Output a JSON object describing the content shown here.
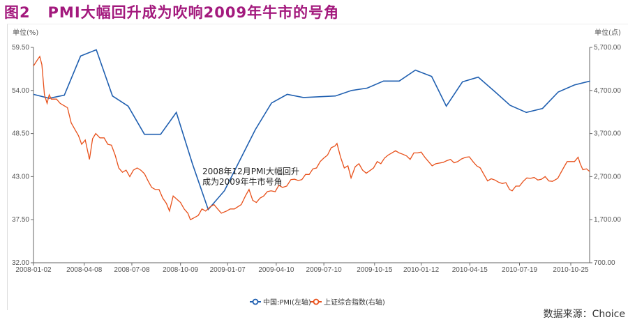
{
  "title": "图2   PMI大幅回升成为吹响2009年牛市的号角",
  "source": "数据来源：Choice",
  "chart_data": {
    "type": "line",
    "title": "图2   PMI大幅回升成为吹响2009年牛市的号角",
    "left_axis": {
      "unit": "单位(%)",
      "ylim": [
        32.0,
        59.5
      ],
      "ticks": [
        "59.50",
        "54.00",
        "48.50",
        "43.00",
        "37.50",
        "32.00"
      ]
    },
    "right_axis": {
      "unit": "单位(点)",
      "ylim": [
        700,
        5700
      ],
      "ticks": [
        "5,700.00",
        "4,700.00",
        "3,700.00",
        "2,700.00",
        "1,700.00",
        "700.00"
      ]
    },
    "x_ticks": [
      "2008-01-02",
      "2008-04-08",
      "2008-07-08",
      "2008-10-09",
      "2009-01-07",
      "2009-04-10",
      "2009-07-10",
      "2009-10-15",
      "2010-01-12",
      "2010-04-15",
      "2010-07-19",
      "2010-10-25"
    ],
    "xlim": [
      "2008-01-02",
      "2010-11-30"
    ],
    "grid": false,
    "legend_position": "bottom",
    "colors": {
      "pmi": "#1f5fb0",
      "sse": "#e8501a"
    },
    "annotation": [
      "2008年12月PMI大幅回升",
      "成为2009年牛市号角"
    ],
    "series": [
      {
        "name": "中国:PMI(左轴)",
        "axis": "left",
        "points": [
          [
            "2008-01-02",
            53.5
          ],
          [
            "2008-02-01",
            53.0
          ],
          [
            "2008-03-01",
            53.4
          ],
          [
            "2008-04-01",
            58.4
          ],
          [
            "2008-05-01",
            59.2
          ],
          [
            "2008-06-01",
            53.3
          ],
          [
            "2008-07-01",
            52.0
          ],
          [
            "2008-08-01",
            48.4
          ],
          [
            "2008-09-01",
            48.4
          ],
          [
            "2008-10-01",
            51.2
          ],
          [
            "2008-11-01",
            44.6
          ],
          [
            "2008-12-01",
            38.8
          ],
          [
            "2009-01-01",
            41.2
          ],
          [
            "2009-02-01",
            45.3
          ],
          [
            "2009-03-01",
            49.0
          ],
          [
            "2009-04-01",
            52.4
          ],
          [
            "2009-05-01",
            53.5
          ],
          [
            "2009-06-01",
            53.1
          ],
          [
            "2009-07-01",
            53.2
          ],
          [
            "2009-08-01",
            53.3
          ],
          [
            "2009-09-01",
            54.0
          ],
          [
            "2009-10-01",
            54.3
          ],
          [
            "2009-11-01",
            55.2
          ],
          [
            "2009-12-01",
            55.2
          ],
          [
            "2010-01-01",
            56.6
          ],
          [
            "2010-02-01",
            55.8
          ],
          [
            "2010-03-01",
            52.0
          ],
          [
            "2010-04-01",
            55.1
          ],
          [
            "2010-05-01",
            55.7
          ],
          [
            "2010-06-01",
            53.9
          ],
          [
            "2010-07-01",
            52.1
          ],
          [
            "2010-08-01",
            51.2
          ],
          [
            "2010-09-01",
            51.7
          ],
          [
            "2010-10-01",
            53.8
          ],
          [
            "2010-11-01",
            54.7
          ],
          [
            "2010-12-01",
            55.2
          ]
        ]
      },
      {
        "name": "上证综合指数(右轴)",
        "axis": "right",
        "points": [
          [
            "2008-01-02",
            5270
          ],
          [
            "2008-01-09",
            5400
          ],
          [
            "2008-01-14",
            5490
          ],
          [
            "2008-01-18",
            5300
          ],
          [
            "2008-01-23",
            4600
          ],
          [
            "2008-01-28",
            4400
          ],
          [
            "2008-02-01",
            4600
          ],
          [
            "2008-02-05",
            4500
          ],
          [
            "2008-02-15",
            4500
          ],
          [
            "2008-02-22",
            4400
          ],
          [
            "2008-02-29",
            4350
          ],
          [
            "2008-03-07",
            4300
          ],
          [
            "2008-03-14",
            3950
          ],
          [
            "2008-03-21",
            3800
          ],
          [
            "2008-03-28",
            3650
          ],
          [
            "2008-04-03",
            3450
          ],
          [
            "2008-04-10",
            3550
          ],
          [
            "2008-04-18",
            3100
          ],
          [
            "2008-04-24",
            3580
          ],
          [
            "2008-04-30",
            3700
          ],
          [
            "2008-05-08",
            3600
          ],
          [
            "2008-05-16",
            3600
          ],
          [
            "2008-05-23",
            3450
          ],
          [
            "2008-05-30",
            3430
          ],
          [
            "2008-06-06",
            3200
          ],
          [
            "2008-06-13",
            2900
          ],
          [
            "2008-06-20",
            2800
          ],
          [
            "2008-06-27",
            2850
          ],
          [
            "2008-07-04",
            2700
          ],
          [
            "2008-07-11",
            2850
          ],
          [
            "2008-07-18",
            2900
          ],
          [
            "2008-07-25",
            2850
          ],
          [
            "2008-08-01",
            2770
          ],
          [
            "2008-08-08",
            2600
          ],
          [
            "2008-08-15",
            2450
          ],
          [
            "2008-08-22",
            2400
          ],
          [
            "2008-08-29",
            2400
          ],
          [
            "2008-09-05",
            2200
          ],
          [
            "2008-09-12",
            2080
          ],
          [
            "2008-09-18",
            1900
          ],
          [
            "2008-09-25",
            2250
          ],
          [
            "2008-10-09",
            2100
          ],
          [
            "2008-10-16",
            1950
          ],
          [
            "2008-10-23",
            1850
          ],
          [
            "2008-10-28",
            1700
          ],
          [
            "2008-11-05",
            1750
          ],
          [
            "2008-11-12",
            1800
          ],
          [
            "2008-11-19",
            1950
          ],
          [
            "2008-11-26",
            1900
          ],
          [
            "2008-12-05",
            2000
          ],
          [
            "2008-12-12",
            2050
          ],
          [
            "2008-12-19",
            1950
          ],
          [
            "2008-12-26",
            1850
          ],
          [
            "2009-01-05",
            1900
          ],
          [
            "2009-01-12",
            1950
          ],
          [
            "2009-01-20",
            1950
          ],
          [
            "2009-02-02",
            2050
          ],
          [
            "2009-02-10",
            2250
          ],
          [
            "2009-02-17",
            2400
          ],
          [
            "2009-02-24",
            2150
          ],
          [
            "2009-03-03",
            2100
          ],
          [
            "2009-03-10",
            2200
          ],
          [
            "2009-03-17",
            2250
          ],
          [
            "2009-03-24",
            2350
          ],
          [
            "2009-03-31",
            2370
          ],
          [
            "2009-04-08",
            2350
          ],
          [
            "2009-04-15",
            2500
          ],
          [
            "2009-04-22",
            2450
          ],
          [
            "2009-04-30",
            2480
          ],
          [
            "2009-05-08",
            2630
          ],
          [
            "2009-05-15",
            2640
          ],
          [
            "2009-05-22",
            2610
          ],
          [
            "2009-05-29",
            2630
          ],
          [
            "2009-06-05",
            2750
          ],
          [
            "2009-06-12",
            2750
          ],
          [
            "2009-06-19",
            2880
          ],
          [
            "2009-06-26",
            2900
          ],
          [
            "2009-07-03",
            3050
          ],
          [
            "2009-07-10",
            3130
          ],
          [
            "2009-07-17",
            3200
          ],
          [
            "2009-07-24",
            3370
          ],
          [
            "2009-07-31",
            3410
          ],
          [
            "2009-08-04",
            3470
          ],
          [
            "2009-08-11",
            3150
          ],
          [
            "2009-08-18",
            2900
          ],
          [
            "2009-08-25",
            2950
          ],
          [
            "2009-08-31",
            2670
          ],
          [
            "2009-09-08",
            2930
          ],
          [
            "2009-09-15",
            3000
          ],
          [
            "2009-09-22",
            2850
          ],
          [
            "2009-09-29",
            2780
          ],
          [
            "2009-10-13",
            2900
          ],
          [
            "2009-10-20",
            3050
          ],
          [
            "2009-10-27",
            3000
          ],
          [
            "2009-11-03",
            3130
          ],
          [
            "2009-11-10",
            3200
          ],
          [
            "2009-11-17",
            3250
          ],
          [
            "2009-11-24",
            3300
          ],
          [
            "2009-12-01",
            3250
          ],
          [
            "2009-12-08",
            3220
          ],
          [
            "2009-12-15",
            3180
          ],
          [
            "2009-12-22",
            3100
          ],
          [
            "2009-12-29",
            3250
          ],
          [
            "2010-01-05",
            3250
          ],
          [
            "2010-01-12",
            3270
          ],
          [
            "2010-01-19",
            3150
          ],
          [
            "2010-01-26",
            3050
          ],
          [
            "2010-02-02",
            2950
          ],
          [
            "2010-02-09",
            3000
          ],
          [
            "2010-02-23",
            3030
          ],
          [
            "2010-03-02",
            3070
          ],
          [
            "2010-03-09",
            3100
          ],
          [
            "2010-03-16",
            3020
          ],
          [
            "2010-03-23",
            3050
          ],
          [
            "2010-03-30",
            3110
          ],
          [
            "2010-04-07",
            3150
          ],
          [
            "2010-04-14",
            3160
          ],
          [
            "2010-04-21",
            3050
          ],
          [
            "2010-04-28",
            2950
          ],
          [
            "2010-05-05",
            2900
          ],
          [
            "2010-05-12",
            2750
          ],
          [
            "2010-05-19",
            2600
          ],
          [
            "2010-05-26",
            2650
          ],
          [
            "2010-06-02",
            2620
          ],
          [
            "2010-06-09",
            2570
          ],
          [
            "2010-06-16",
            2540
          ],
          [
            "2010-06-23",
            2560
          ],
          [
            "2010-06-30",
            2400
          ],
          [
            "2010-07-05",
            2370
          ],
          [
            "2010-07-12",
            2480
          ],
          [
            "2010-07-19",
            2480
          ],
          [
            "2010-07-26",
            2590
          ],
          [
            "2010-08-02",
            2670
          ],
          [
            "2010-08-09",
            2660
          ],
          [
            "2010-08-16",
            2680
          ],
          [
            "2010-08-23",
            2620
          ],
          [
            "2010-08-30",
            2640
          ],
          [
            "2010-09-06",
            2700
          ],
          [
            "2010-09-13",
            2600
          ],
          [
            "2010-09-20",
            2590
          ],
          [
            "2010-09-30",
            2660
          ],
          [
            "2010-10-11",
            2900
          ],
          [
            "2010-10-18",
            3050
          ],
          [
            "2010-10-25",
            3050
          ],
          [
            "2010-11-01",
            3050
          ],
          [
            "2010-11-08",
            3150
          ],
          [
            "2010-11-12",
            3000
          ],
          [
            "2010-11-17",
            2860
          ],
          [
            "2010-11-24",
            2880
          ],
          [
            "2010-11-30",
            2820
          ]
        ]
      }
    ]
  }
}
